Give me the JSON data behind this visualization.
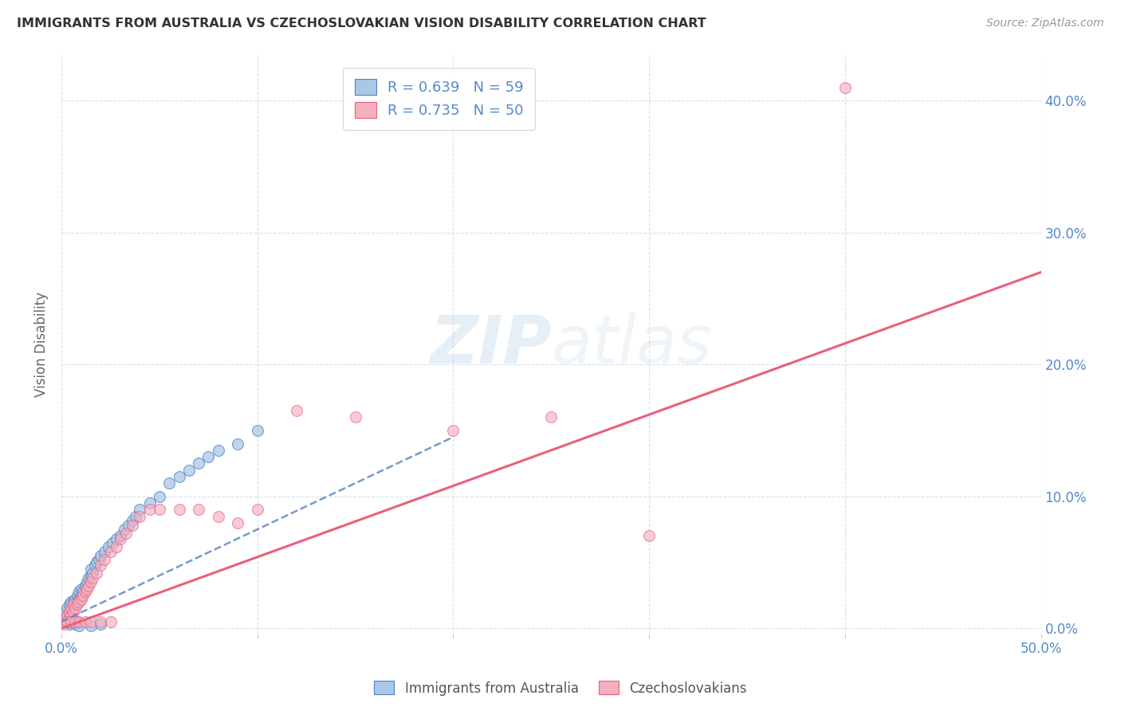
{
  "title": "IMMIGRANTS FROM AUSTRALIA VS CZECHOSLOVAKIAN VISION DISABILITY CORRELATION CHART",
  "source": "Source: ZipAtlas.com",
  "ylabel": "Vision Disability",
  "R1": 0.639,
  "N1": 59,
  "R2": 0.735,
  "N2": 50,
  "color_blue": "#a8c8e8",
  "color_pink": "#f5b0c0",
  "color_blue_line": "#5580c0",
  "color_pink_line": "#e8607a",
  "color_text_blue": "#5588cc",
  "background": "#ffffff",
  "xlim": [
    0.0,
    0.5
  ],
  "ylim": [
    -0.005,
    0.435
  ],
  "ytick_values": [
    0.0,
    0.1,
    0.2,
    0.3,
    0.4
  ],
  "xtick_values": [
    0.0,
    0.1,
    0.2,
    0.3,
    0.4,
    0.5
  ],
  "legend_label1": "Immigrants from Australia",
  "legend_label2": "Czechoslovakians",
  "blue_x": [
    0.001,
    0.002,
    0.002,
    0.003,
    0.003,
    0.004,
    0.004,
    0.005,
    0.005,
    0.006,
    0.006,
    0.007,
    0.007,
    0.008,
    0.008,
    0.009,
    0.009,
    0.01,
    0.01,
    0.011,
    0.012,
    0.013,
    0.014,
    0.015,
    0.015,
    0.016,
    0.017,
    0.018,
    0.019,
    0.02,
    0.022,
    0.024,
    0.026,
    0.028,
    0.03,
    0.032,
    0.034,
    0.036,
    0.038,
    0.04,
    0.045,
    0.05,
    0.055,
    0.06,
    0.065,
    0.07,
    0.075,
    0.08,
    0.09,
    0.1,
    0.003,
    0.004,
    0.005,
    0.006,
    0.007,
    0.008,
    0.009,
    0.015,
    0.02
  ],
  "blue_y": [
    0.005,
    0.008,
    0.012,
    0.01,
    0.015,
    0.012,
    0.018,
    0.01,
    0.02,
    0.015,
    0.02,
    0.018,
    0.022,
    0.02,
    0.025,
    0.022,
    0.028,
    0.025,
    0.03,
    0.028,
    0.032,
    0.035,
    0.038,
    0.04,
    0.045,
    0.042,
    0.048,
    0.05,
    0.052,
    0.055,
    0.058,
    0.062,
    0.065,
    0.068,
    0.07,
    0.075,
    0.078,
    0.082,
    0.085,
    0.09,
    0.095,
    0.1,
    0.11,
    0.115,
    0.12,
    0.125,
    0.13,
    0.135,
    0.14,
    0.15,
    0.005,
    0.003,
    0.008,
    0.005,
    0.003,
    0.005,
    0.002,
    0.002,
    0.003
  ],
  "pink_x": [
    0.001,
    0.002,
    0.003,
    0.003,
    0.004,
    0.004,
    0.005,
    0.005,
    0.006,
    0.006,
    0.007,
    0.008,
    0.009,
    0.01,
    0.011,
    0.012,
    0.013,
    0.014,
    0.015,
    0.016,
    0.018,
    0.02,
    0.022,
    0.025,
    0.028,
    0.03,
    0.033,
    0.036,
    0.04,
    0.045,
    0.05,
    0.06,
    0.07,
    0.08,
    0.09,
    0.1,
    0.12,
    0.15,
    0.2,
    0.25,
    0.003,
    0.005,
    0.007,
    0.009,
    0.012,
    0.015,
    0.02,
    0.025,
    0.3,
    0.4
  ],
  "pink_y": [
    0.003,
    0.006,
    0.005,
    0.01,
    0.008,
    0.012,
    0.01,
    0.015,
    0.012,
    0.018,
    0.015,
    0.018,
    0.02,
    0.022,
    0.025,
    0.028,
    0.03,
    0.032,
    0.035,
    0.038,
    0.042,
    0.048,
    0.052,
    0.058,
    0.062,
    0.068,
    0.072,
    0.078,
    0.085,
    0.09,
    0.09,
    0.09,
    0.09,
    0.085,
    0.08,
    0.09,
    0.165,
    0.16,
    0.15,
    0.16,
    0.005,
    0.005,
    0.005,
    0.005,
    0.005,
    0.005,
    0.005,
    0.005,
    0.07,
    0.41
  ],
  "blue_line_x": [
    0.0,
    0.2
  ],
  "blue_line_y": [
    0.005,
    0.145
  ],
  "pink_line_x": [
    0.0,
    0.5
  ],
  "pink_line_y": [
    0.0,
    0.27
  ]
}
